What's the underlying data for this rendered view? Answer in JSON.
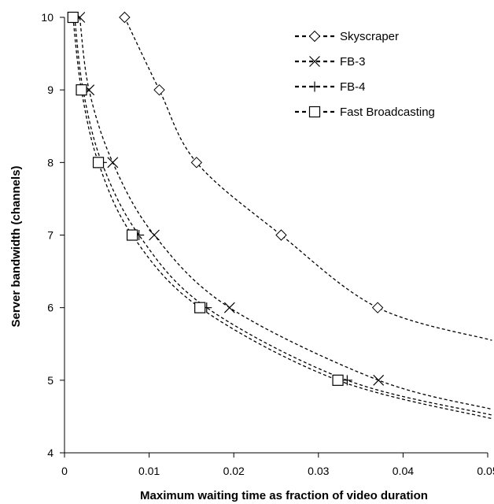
{
  "chart_data": {
    "type": "line",
    "title": "",
    "xlabel": "Maximum waiting time as fraction of video duration",
    "ylabel": "Server bandwidth (channels)",
    "xlim": [
      0,
      0.05
    ],
    "ylim": [
      4,
      10
    ],
    "xticks": [
      0,
      0.01,
      0.02,
      0.03,
      0.04,
      0.05
    ],
    "xtick_labels": [
      "0",
      "0.01",
      "0.02",
      "0.03",
      "0.04",
      "0.05"
    ],
    "yticks": [
      4,
      5,
      6,
      7,
      8,
      9,
      10
    ],
    "ytick_labels": [
      "4",
      "5",
      "6",
      "7",
      "8",
      "9",
      "10"
    ],
    "grid": false,
    "legend_position": "top-right",
    "series": [
      {
        "name": "Skyscraper",
        "marker": "diamond",
        "points": [
          [
            0.0071,
            10
          ],
          [
            0.0112,
            9
          ],
          [
            0.0156,
            8
          ],
          [
            0.0256,
            7
          ],
          [
            0.037,
            6
          ]
        ],
        "extension": [
          0.0505,
          5.55
        ]
      },
      {
        "name": "FB-3",
        "marker": "x",
        "points": [
          [
            0.0018,
            10
          ],
          [
            0.0029,
            9
          ],
          [
            0.0057,
            8
          ],
          [
            0.0106,
            7
          ],
          [
            0.0195,
            6
          ],
          [
            0.0371,
            5
          ]
        ],
        "extension": [
          0.0505,
          4.6
        ]
      },
      {
        "name": "FB-4",
        "marker": "plus",
        "points": [
          [
            0.0012,
            10
          ],
          [
            0.0022,
            9
          ],
          [
            0.0044,
            8
          ],
          [
            0.0088,
            7
          ],
          [
            0.0168,
            6
          ],
          [
            0.0334,
            5
          ]
        ],
        "extension": [
          0.0505,
          4.52
        ]
      },
      {
        "name": "Fast Broadcasting",
        "marker": "square",
        "points": [
          [
            0.001,
            10
          ],
          [
            0.002,
            9
          ],
          [
            0.004,
            8
          ],
          [
            0.008,
            7
          ],
          [
            0.016,
            6
          ],
          [
            0.0323,
            5
          ]
        ],
        "extension": [
          0.0505,
          4.47
        ]
      }
    ]
  }
}
